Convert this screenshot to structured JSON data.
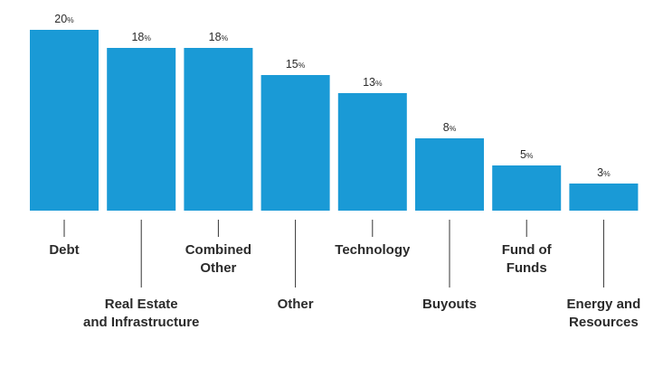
{
  "chart_data": {
    "type": "bar",
    "title": "",
    "xlabel": "",
    "ylabel": "",
    "ylim": [
      0,
      20
    ],
    "grid": false,
    "legend": "none",
    "bar_color": "#1a9ad6",
    "leader_color": "#333333",
    "categories": [
      [
        "Debt"
      ],
      [
        "Real Estate",
        "and Infrastructure"
      ],
      [
        "Combined",
        "Other"
      ],
      [
        "Other"
      ],
      [
        "Technology"
      ],
      [
        "Buyouts"
      ],
      [
        "Fund of",
        "Funds"
      ],
      [
        "Energy and",
        "Resources"
      ]
    ],
    "values": [
      20,
      18,
      18,
      15,
      13,
      8,
      5,
      3
    ],
    "value_labels": [
      "20",
      "18",
      "18",
      "15",
      "13",
      "8",
      "5",
      "3"
    ],
    "value_suffix": "%"
  }
}
